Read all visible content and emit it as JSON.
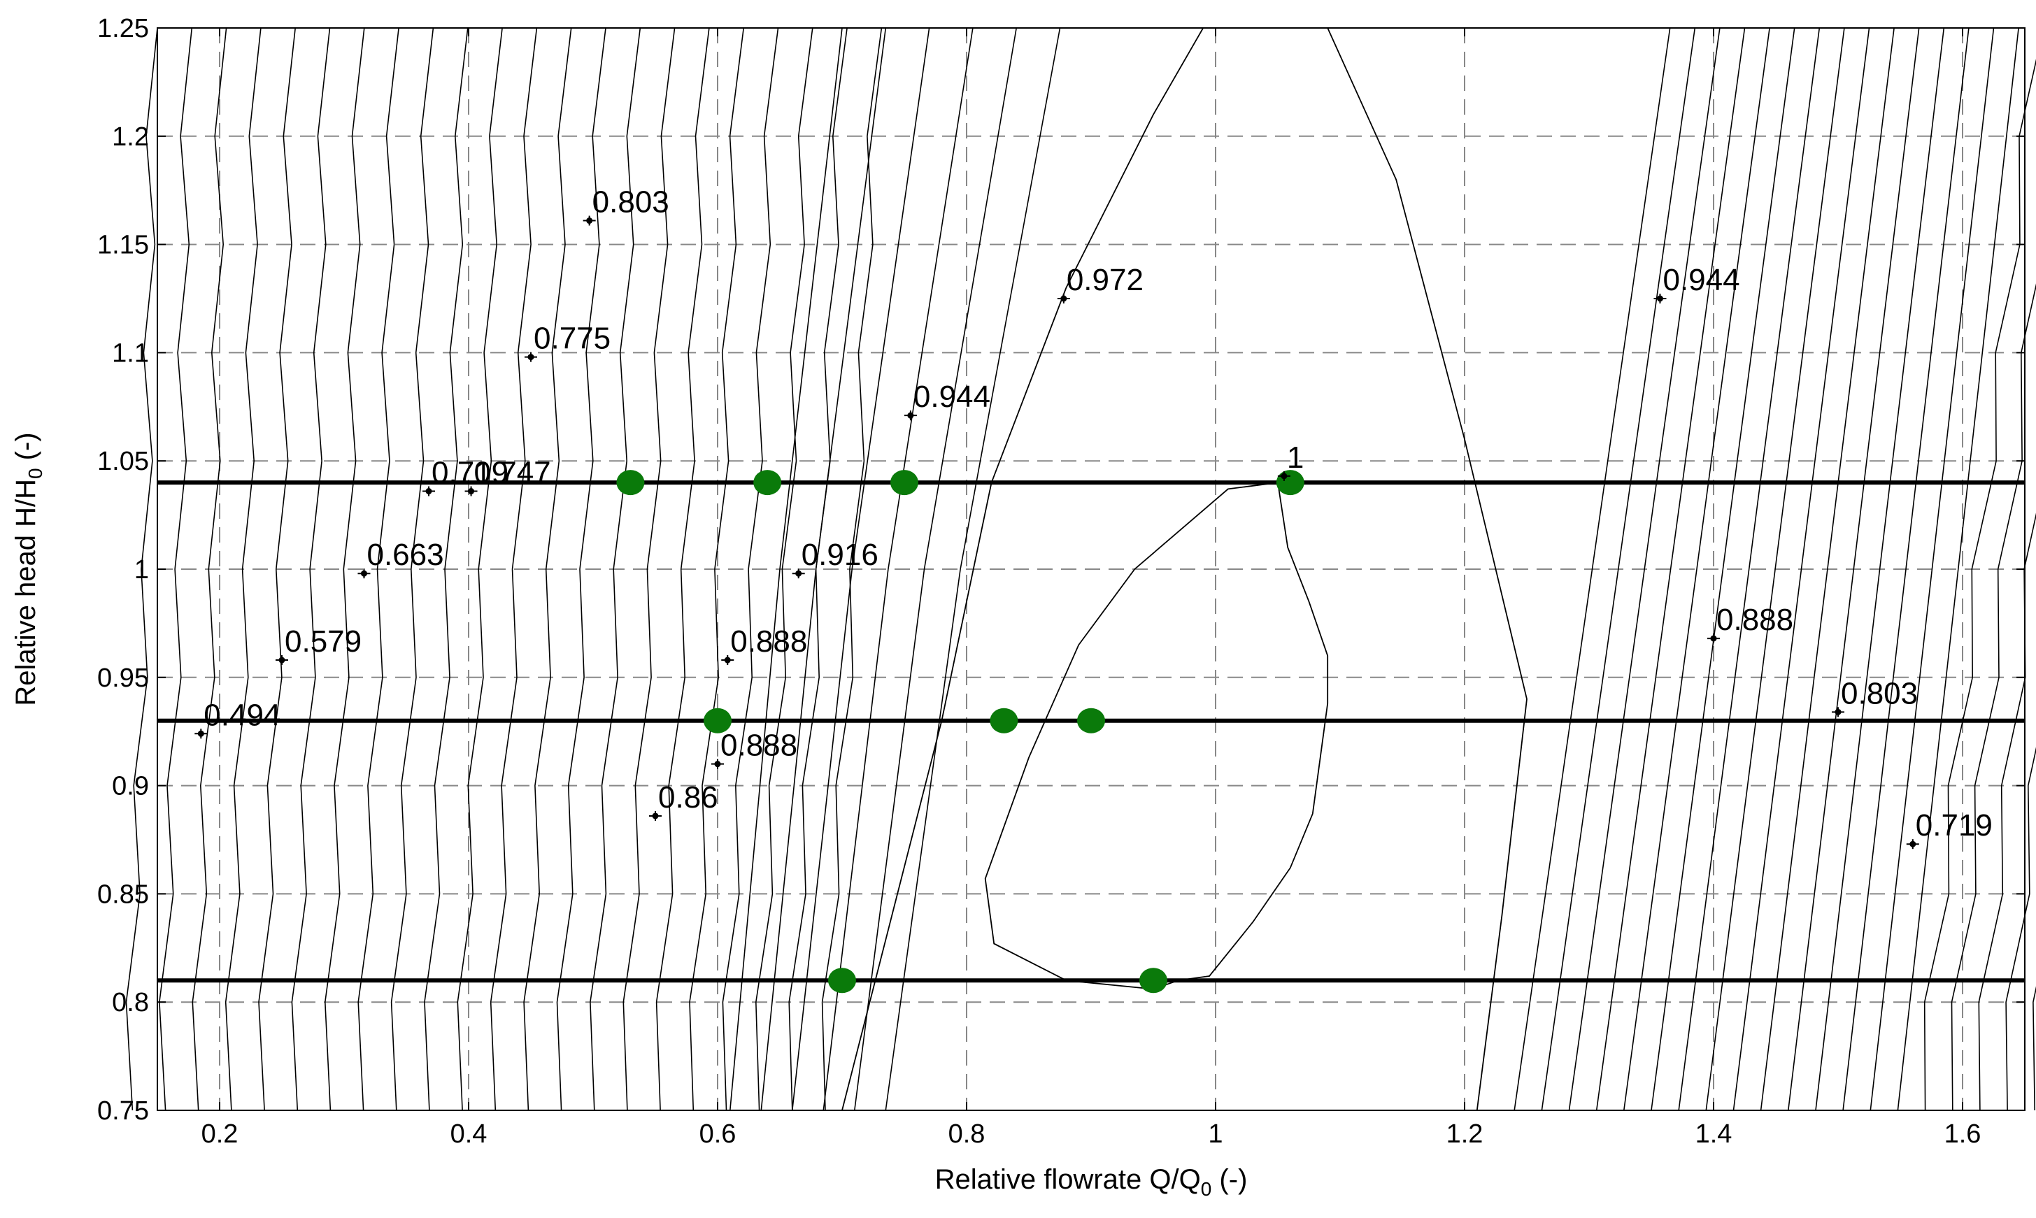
{
  "chart_data": {
    "type": "line",
    "title": "",
    "xlabel": "Relative flowrate Q/Q",
    "xlabel_sub": "0",
    "xlabel_tail": " (-)",
    "ylabel": "Relative head H/H",
    "ylabel_sub": "0",
    "ylabel_tail": " (-)",
    "xlim": [
      0.15,
      1.65
    ],
    "ylim": [
      0.75,
      1.25
    ],
    "xticks": [
      0.2,
      0.4,
      0.6,
      0.8,
      1.0,
      1.2,
      1.4,
      1.6
    ],
    "xtick_labels": [
      "0.2",
      "0.4",
      "0.6",
      "0.8",
      "1",
      "1.2",
      "1.4",
      "1.6"
    ],
    "yticks": [
      0.75,
      0.8,
      0.85,
      0.9,
      0.95,
      1.0,
      1.05,
      1.1,
      1.15,
      1.2,
      1.25
    ],
    "ytick_labels": [
      "0.75",
      "0.8",
      "0.85",
      "0.9",
      "0.95",
      "1",
      "1.05",
      "1.1",
      "1.15",
      "1.2",
      "1.25"
    ],
    "grid": "dashed",
    "operating_lines": [
      {
        "y": 1.04
      },
      {
        "y": 0.93
      },
      {
        "y": 0.81
      }
    ],
    "operating_points": [
      {
        "x": 0.53,
        "y": 1.04
      },
      {
        "x": 0.64,
        "y": 1.04
      },
      {
        "x": 0.75,
        "y": 1.04
      },
      {
        "x": 1.06,
        "y": 1.04
      },
      {
        "x": 0.6,
        "y": 0.93
      },
      {
        "x": 0.83,
        "y": 0.93
      },
      {
        "x": 0.9,
        "y": 0.93
      },
      {
        "x": 0.7,
        "y": 0.81
      },
      {
        "x": 0.95,
        "y": 0.81
      }
    ],
    "point_color": "#0a7a0a",
    "contour_labels": [
      {
        "text": "0.803",
        "x": 0.497,
        "y": 1.161
      },
      {
        "text": "0.775",
        "x": 0.45,
        "y": 1.098
      },
      {
        "text": "0.719",
        "x": 0.368,
        "y": 1.036
      },
      {
        "text": "0.747",
        "x": 0.402,
        "y": 1.036
      },
      {
        "text": "0.663",
        "x": 0.316,
        "y": 0.998
      },
      {
        "text": "0.579",
        "x": 0.25,
        "y": 0.958
      },
      {
        "text": "0.494",
        "x": 0.185,
        "y": 0.924
      },
      {
        "text": "0.972",
        "x": 0.878,
        "y": 1.125
      },
      {
        "text": "0.944",
        "x": 0.755,
        "y": 1.071
      },
      {
        "text": "0.916",
        "x": 0.665,
        "y": 0.998
      },
      {
        "text": "0.888",
        "x": 0.608,
        "y": 0.958
      },
      {
        "text": "0.888",
        "x": 0.6,
        "y": 0.91
      },
      {
        "text": "0.86",
        "x": 0.55,
        "y": 0.886
      },
      {
        "text": "1",
        "x": 1.055,
        "y": 1.043
      },
      {
        "text": "0.944",
        "x": 1.357,
        "y": 1.125
      },
      {
        "text": "0.888",
        "x": 1.4,
        "y": 0.968
      },
      {
        "text": "0.803",
        "x": 1.5,
        "y": 0.934
      },
      {
        "text": "0.719",
        "x": 1.56,
        "y": 0.873
      }
    ],
    "efficiency_island": [
      [
        1.05,
        1.04
      ],
      [
        1.01,
        1.037
      ],
      [
        0.935,
        1.0
      ],
      [
        0.89,
        0.965
      ],
      [
        0.85,
        0.913
      ],
      [
        0.815,
        0.857
      ],
      [
        0.822,
        0.827
      ],
      [
        0.88,
        0.81
      ],
      [
        0.95,
        0.806
      ],
      [
        0.97,
        0.81
      ],
      [
        0.995,
        0.812
      ],
      [
        1.03,
        0.837
      ],
      [
        1.06,
        0.862
      ],
      [
        1.078,
        0.887
      ],
      [
        1.09,
        0.938
      ],
      [
        1.09,
        0.96
      ],
      [
        1.075,
        0.985
      ],
      [
        1.058,
        1.01
      ],
      [
        1.05,
        1.04
      ]
    ],
    "efficiency_outer": [
      [
        0.7,
        0.75
      ],
      [
        0.74,
        0.84
      ],
      [
        0.78,
        0.93
      ],
      [
        0.82,
        1.04
      ],
      [
        0.88,
        1.13
      ],
      [
        0.95,
        1.21
      ],
      [
        0.99,
        1.25
      ],
      [
        1.09,
        1.25
      ],
      [
        1.145,
        1.18
      ],
      [
        1.2,
        1.06
      ],
      [
        1.25,
        0.94
      ],
      [
        1.23,
        0.84
      ],
      [
        1.21,
        0.75
      ]
    ]
  }
}
